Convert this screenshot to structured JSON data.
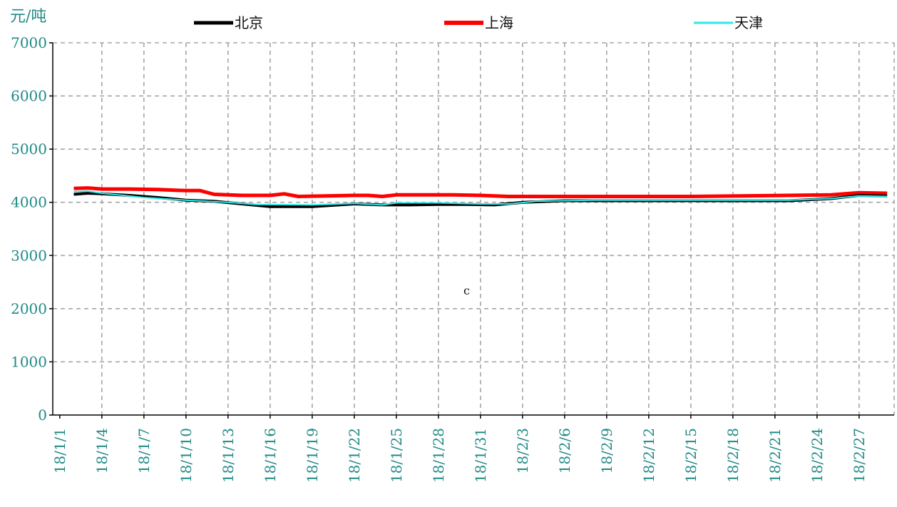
{
  "chart_data": {
    "type": "line",
    "y_unit_label": "元/吨",
    "ylim": [
      0,
      7000
    ],
    "y_ticks": [
      0,
      1000,
      2000,
      3000,
      4000,
      5000,
      6000,
      7000
    ],
    "x_tick_labels": [
      "18/1/1",
      "18/1/4",
      "18/1/7",
      "18/1/10",
      "18/1/13",
      "18/1/16",
      "18/1/19",
      "18/1/22",
      "18/1/25",
      "18/1/28",
      "18/1/31",
      "18/2/3",
      "18/2/6",
      "18/2/9",
      "18/2/12",
      "18/2/15",
      "18/2/18",
      "18/2/21",
      "18/2/24",
      "18/2/27"
    ],
    "grid": true,
    "legend_position": "top",
    "annotation": "c",
    "series": [
      {
        "name": "北京",
        "color": "#000000",
        "points": [
          {
            "x": "18/1/2",
            "y": 4150
          },
          {
            "x": "18/1/3",
            "y": 4170
          },
          {
            "x": "18/1/4",
            "y": 4160
          },
          {
            "x": "18/1/6",
            "y": 4130
          },
          {
            "x": "18/1/8",
            "y": 4090
          },
          {
            "x": "18/1/10",
            "y": 4040
          },
          {
            "x": "18/1/12",
            "y": 4020
          },
          {
            "x": "18/1/14",
            "y": 3970
          },
          {
            "x": "18/1/16",
            "y": 3920
          },
          {
            "x": "18/1/19",
            "y": 3920
          },
          {
            "x": "18/1/22",
            "y": 3970
          },
          {
            "x": "18/1/24",
            "y": 3950
          },
          {
            "x": "18/1/26",
            "y": 3950
          },
          {
            "x": "18/1/28",
            "y": 3960
          },
          {
            "x": "18/1/30",
            "y": 3960
          },
          {
            "x": "18/2/1",
            "y": 3950
          },
          {
            "x": "18/2/3",
            "y": 4000
          },
          {
            "x": "18/2/6",
            "y": 4030
          },
          {
            "x": "18/2/12",
            "y": 4030
          },
          {
            "x": "18/2/18",
            "y": 4030
          },
          {
            "x": "18/2/22",
            "y": 4030
          },
          {
            "x": "18/2/25",
            "y": 4070
          },
          {
            "x": "18/2/27",
            "y": 4130
          },
          {
            "x": "18/3/1",
            "y": 4120
          }
        ]
      },
      {
        "name": "上海",
        "color": "#ff0000",
        "points": [
          {
            "x": "18/1/2",
            "y": 4260
          },
          {
            "x": "18/1/3",
            "y": 4270
          },
          {
            "x": "18/1/4",
            "y": 4250
          },
          {
            "x": "18/1/6",
            "y": 4250
          },
          {
            "x": "18/1/8",
            "y": 4240
          },
          {
            "x": "18/1/10",
            "y": 4220
          },
          {
            "x": "18/1/11",
            "y": 4220
          },
          {
            "x": "18/1/12",
            "y": 4150
          },
          {
            "x": "18/1/14",
            "y": 4130
          },
          {
            "x": "18/1/16",
            "y": 4130
          },
          {
            "x": "18/1/17",
            "y": 4160
          },
          {
            "x": "18/1/18",
            "y": 4110
          },
          {
            "x": "18/1/22",
            "y": 4130
          },
          {
            "x": "18/1/23",
            "y": 4130
          },
          {
            "x": "18/1/24",
            "y": 4110
          },
          {
            "x": "18/1/25",
            "y": 4140
          },
          {
            "x": "18/1/29",
            "y": 4140
          },
          {
            "x": "18/1/31",
            "y": 4130
          },
          {
            "x": "18/2/2",
            "y": 4110
          },
          {
            "x": "18/2/8",
            "y": 4110
          },
          {
            "x": "18/2/15",
            "y": 4110
          },
          {
            "x": "18/2/22",
            "y": 4130
          },
          {
            "x": "18/2/25",
            "y": 4140
          },
          {
            "x": "18/2/27",
            "y": 4180
          },
          {
            "x": "18/3/1",
            "y": 4170
          }
        ]
      },
      {
        "name": "天津",
        "color": "#2ee8e8",
        "points": [
          {
            "x": "18/1/2",
            "y": 4200
          },
          {
            "x": "18/1/3",
            "y": 4210
          },
          {
            "x": "18/1/4",
            "y": 4170
          },
          {
            "x": "18/1/7",
            "y": 4090
          },
          {
            "x": "18/1/10",
            "y": 4040
          },
          {
            "x": "18/1/13",
            "y": 4000
          },
          {
            "x": "18/1/15",
            "y": 3960
          },
          {
            "x": "18/1/19",
            "y": 3950
          },
          {
            "x": "18/1/22",
            "y": 3980
          },
          {
            "x": "18/1/24",
            "y": 3950
          },
          {
            "x": "18/1/25",
            "y": 3990
          },
          {
            "x": "18/1/28",
            "y": 3990
          },
          {
            "x": "18/1/31",
            "y": 3970
          },
          {
            "x": "18/2/2",
            "y": 3970
          },
          {
            "x": "18/2/4",
            "y": 4020
          },
          {
            "x": "18/2/8",
            "y": 4040
          },
          {
            "x": "18/2/15",
            "y": 4040
          },
          {
            "x": "18/2/22",
            "y": 4040
          },
          {
            "x": "18/2/25",
            "y": 4070
          },
          {
            "x": "18/2/27",
            "y": 4120
          },
          {
            "x": "18/3/1",
            "y": 4110
          }
        ]
      }
    ]
  }
}
